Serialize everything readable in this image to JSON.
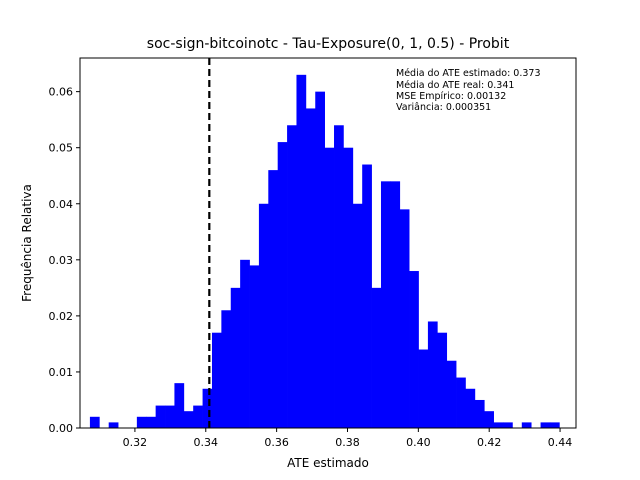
{
  "chart_data": {
    "type": "bar",
    "title": "soc-sign-bitcoinotc - Tau-Exposure(0, 1, 0.5) - Probit",
    "xlabel": "ATE estimado",
    "ylabel": "Frequência Relativa",
    "xlim": [
      0.3045,
      0.4445
    ],
    "ylim": [
      0,
      0.066
    ],
    "xticks": [
      "0.32",
      "0.34",
      "0.36",
      "0.38",
      "0.40",
      "0.42",
      "0.44"
    ],
    "yticks": [
      "0.00",
      "0.01",
      "0.02",
      "0.03",
      "0.04",
      "0.05",
      "0.06"
    ],
    "bar_color": "#0000ff",
    "bin_start": 0.3073,
    "bin_width": 0.00265,
    "values": [
      0.002,
      0,
      0.001,
      0,
      0,
      0.002,
      0.002,
      0.004,
      0.004,
      0.008,
      0.003,
      0.004,
      0.007,
      0.017,
      0.021,
      0.025,
      0.03,
      0.029,
      0.04,
      0.046,
      0.051,
      0.054,
      0.063,
      0.057,
      0.06,
      0.05,
      0.054,
      0.05,
      0.04,
      0.047,
      0.025,
      0.044,
      0.044,
      0.039,
      0.028,
      0.014,
      0.019,
      0.017,
      0.012,
      0.009,
      0.007,
      0.005,
      0.003,
      0.001,
      0.001,
      0,
      0.001,
      0,
      0.001,
      0.001
    ],
    "reference_line": {
      "x": 0.341,
      "style": "dashed",
      "color": "#000000"
    },
    "annotations": [
      "Média do ATE estimado: 0.373",
      "Média do ATE real: 0.341",
      "MSE Empírico: 0.00132",
      "Variância: 0.000351"
    ],
    "annotation_placement": "top-right",
    "grid": false,
    "legend": "none"
  }
}
